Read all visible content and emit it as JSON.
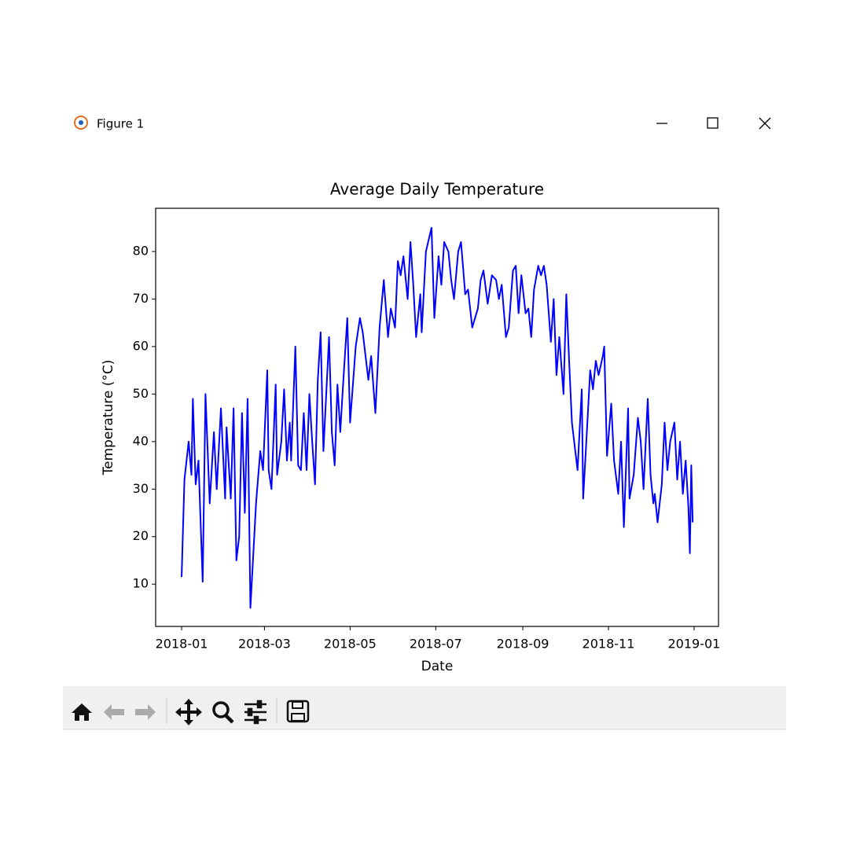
{
  "window": {
    "title": "Figure 1"
  },
  "chart_data": {
    "type": "line",
    "title": "Average Daily Temperature",
    "x_label": "Date",
    "y_label": "Temperature (°C)",
    "x": [
      0,
      2,
      5,
      7,
      8,
      10,
      12,
      15,
      17,
      20,
      23,
      25,
      28,
      31,
      32,
      35,
      37,
      39,
      41,
      43,
      45,
      47,
      49,
      53,
      56,
      58,
      61,
      62,
      64,
      67,
      68,
      71,
      73,
      75,
      77,
      78,
      81,
      83,
      85,
      87,
      89,
      91,
      93,
      95,
      97,
      99,
      101,
      105,
      107,
      109,
      111,
      113,
      115,
      118,
      120,
      124,
      127,
      129,
      133,
      135,
      138,
      141,
      144,
      147,
      149,
      152,
      154,
      156,
      158,
      161,
      163,
      165,
      167,
      170,
      171,
      174,
      178,
      180,
      183,
      185,
      187,
      190,
      192,
      194,
      197,
      199,
      202,
      204,
      207,
      211,
      213,
      215,
      218,
      221,
      224,
      226,
      228,
      231,
      233,
      236,
      238,
      240,
      242,
      245,
      247,
      249,
      251,
      254,
      256,
      258,
      260,
      263,
      265,
      267,
      269,
      272,
      274,
      276,
      278,
      282,
      285,
      286,
      289,
      291,
      293,
      295,
      297,
      300,
      301,
      303,
      306,
      308,
      311,
      313,
      315,
      318,
      319,
      322,
      325,
      327,
      329,
      332,
      334,
      336,
      337,
      339,
      342,
      344,
      346,
      348,
      351,
      353,
      355,
      357,
      359,
      361,
      362,
      363,
      364
    ],
    "values": [
      11.5,
      32,
      40,
      33,
      49,
      31,
      36,
      10.5,
      50,
      27,
      42,
      30,
      47,
      28,
      43,
      28,
      47,
      15,
      20,
      46,
      25,
      49,
      5,
      27,
      38,
      34,
      55,
      34,
      30,
      52,
      33,
      40,
      51,
      36,
      44,
      36,
      60,
      35,
      34,
      46,
      34,
      50,
      40,
      31,
      53,
      63,
      38,
      62,
      42,
      35,
      52,
      42,
      52,
      66,
      44,
      60,
      66,
      63,
      53,
      58,
      46,
      64,
      74,
      62,
      68,
      64,
      78,
      75,
      79,
      70,
      82,
      73,
      62,
      71,
      63,
      80,
      85,
      66,
      79,
      73,
      82,
      80,
      74,
      70,
      80,
      82,
      71,
      72,
      64,
      68,
      74,
      76,
      69,
      75,
      74,
      70,
      73,
      62,
      64,
      76,
      77,
      67,
      75,
      67,
      68,
      62,
      72,
      77,
      75,
      77,
      73,
      61,
      70,
      54,
      62,
      50,
      71,
      57,
      44,
      34,
      51,
      28,
      44,
      55,
      51,
      57,
      54,
      58,
      60,
      37,
      48,
      36,
      29,
      40,
      22,
      47,
      28,
      33,
      45,
      40,
      30,
      49,
      33,
      27,
      29,
      23,
      31,
      44,
      34,
      40,
      44,
      32,
      40,
      29,
      36,
      26,
      16.5,
      35,
      23
    ],
    "color": "blue",
    "xlim": [
      -18.5,
      382.4
    ],
    "xticks": [
      {
        "value": 0,
        "label": "2018-01"
      },
      {
        "value": 59,
        "label": "2018-03"
      },
      {
        "value": 120,
        "label": "2018-05"
      },
      {
        "value": 181,
        "label": "2018-07"
      },
      {
        "value": 243,
        "label": "2018-09"
      },
      {
        "value": 304,
        "label": "2018-11"
      },
      {
        "value": 365,
        "label": "2019-01"
      }
    ],
    "ylim": [
      1.1,
      89.1
    ],
    "yticks": [
      10,
      20,
      30,
      40,
      50,
      60,
      70,
      80
    ]
  }
}
